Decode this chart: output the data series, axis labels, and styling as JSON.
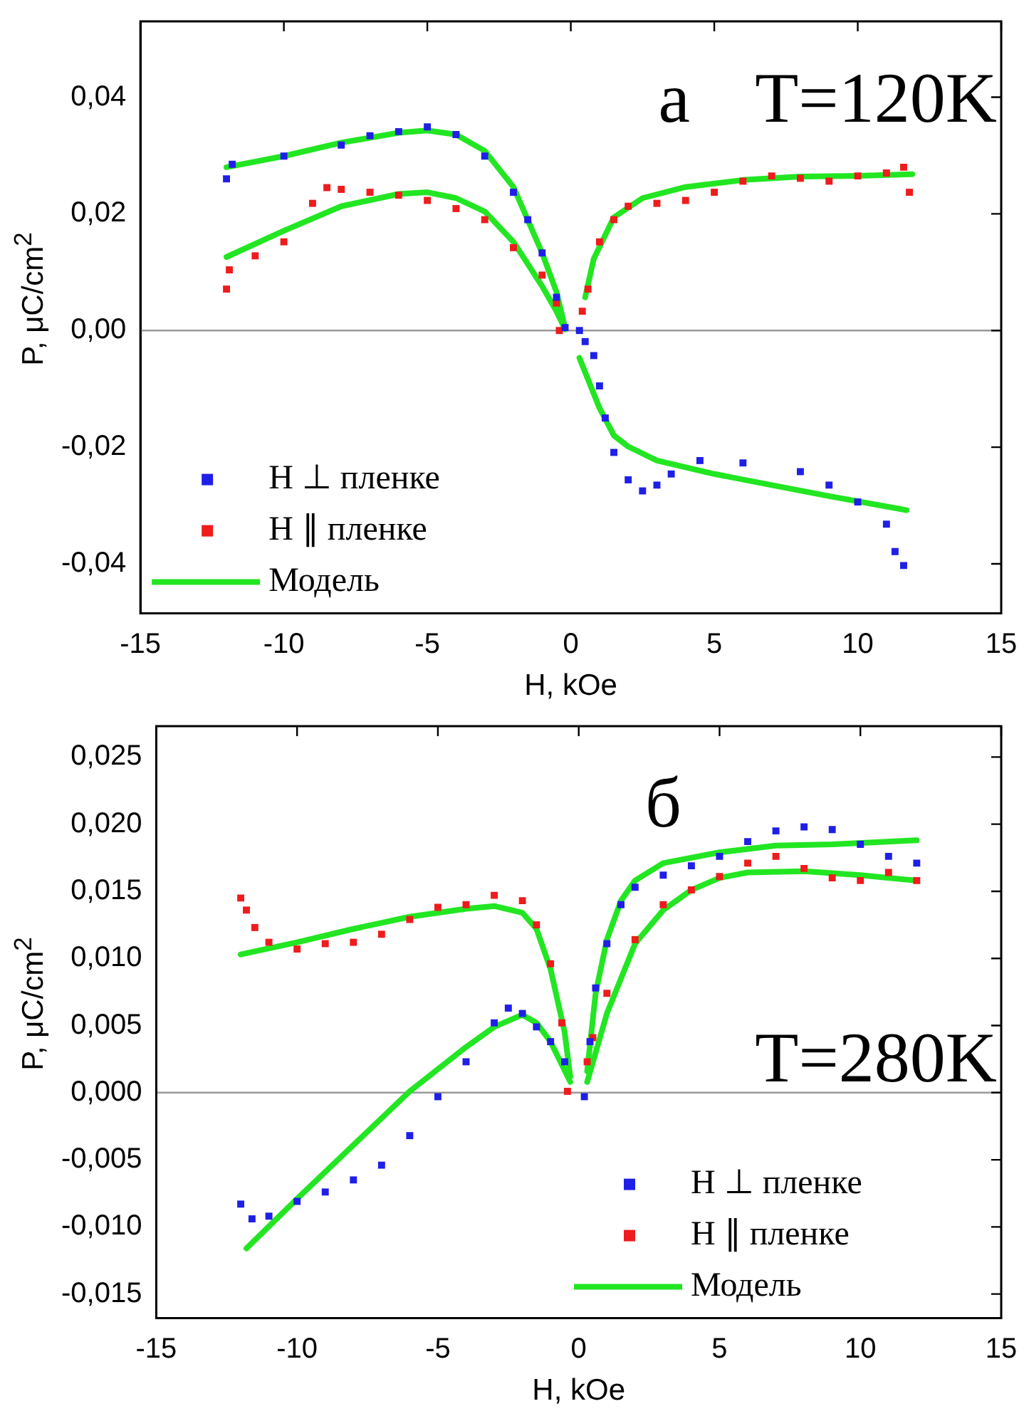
{
  "chart_data": [
    {
      "type": "scatter",
      "xlabel": "H, kOe",
      "ylabel": "P, μC/cm$^{2}$",
      "annotations": [
        "а",
        "T=120K"
      ],
      "xlim": [
        -15,
        15
      ],
      "xticks": [
        -15,
        -10,
        -5,
        0,
        5,
        10,
        15
      ],
      "ylim": [
        -0.0485,
        0.053
      ],
      "yticks": [
        {
          "value": -0.04,
          "label": "-0,04"
        },
        {
          "value": -0.02,
          "label": "-0,02"
        },
        {
          "value": 0,
          "label": "0,00"
        },
        {
          "value": 0.02,
          "label": "0,02"
        },
        {
          "value": 0.04,
          "label": "0,04"
        }
      ],
      "grid": false,
      "legend": "bottom left",
      "marker": "square",
      "ref_lines": [
        {
          "axis": "y",
          "value": 0,
          "color": "#999999"
        }
      ],
      "series": [
        {
          "name": "H ⊥ пленке",
          "color": "#1f1fe8",
          "x": [
            -12,
            -11.8,
            -10,
            -8,
            -7,
            -6,
            -5,
            -4,
            -3,
            -2,
            -1.5,
            -1,
            -0.5,
            -0.2,
            0.3,
            0.5,
            0.8,
            1,
            1.2,
            1.5,
            2,
            2.5,
            3,
            3.5,
            4.5,
            6,
            8,
            9,
            10,
            11,
            11.3,
            11.6
          ],
          "values": [
            0.026,
            0.0285,
            0.0299,
            0.0318,
            0.0334,
            0.0341,
            0.0349,
            0.0336,
            0.0299,
            0.0237,
            0.019,
            0.0133,
            0.0057,
            0.0005,
            0,
            -0.0019,
            -0.0043,
            -0.0095,
            -0.015,
            -0.0209,
            -0.0256,
            -0.0275,
            -0.0265,
            -0.0246,
            -0.0223,
            -0.0227,
            -0.0242,
            -0.0265,
            -0.0294,
            -0.0332,
            -0.0379,
            -0.0403
          ]
        },
        {
          "name": "H ∥ пленке",
          "color": "#ee1c1c",
          "x": [
            -12,
            -11.9,
            -11,
            -10,
            -9,
            -8.5,
            -8,
            -7,
            -6,
            -5,
            -4,
            -3,
            -2,
            -1,
            -0.5,
            -0.4,
            0.4,
            0.6,
            1,
            1.5,
            2,
            3,
            4,
            5,
            6,
            7,
            8,
            9,
            10,
            11,
            11.6,
            11.8
          ],
          "values": [
            0.0071,
            0.0104,
            0.0128,
            0.0152,
            0.0218,
            0.0245,
            0.0242,
            0.0237,
            0.0232,
            0.0223,
            0.0209,
            0.019,
            0.0142,
            0.0095,
            0.0047,
            0,
            0.0033,
            0.0071,
            0.0152,
            0.019,
            0.0213,
            0.0218,
            0.0223,
            0.0237,
            0.0256,
            0.0265,
            0.0261,
            0.0256,
            0.0265,
            0.027,
            0.028,
            0.0237
          ]
        },
        {
          "name": "Модель",
          "type": "line",
          "color": "#22e622",
          "marker": "none",
          "x": [
            -12,
            -10,
            -8,
            -6,
            -5,
            -4,
            -3,
            -2,
            -1,
            -0.5,
            -0.2
          ],
          "values": [
            0.028,
            0.0299,
            0.0322,
            0.0339,
            0.0343,
            0.0336,
            0.0308,
            0.0246,
            0.0133,
            0.0066,
            0.0005
          ]
        },
        {
          "type": "line",
          "color": "#22e622",
          "marker": "none",
          "x": [
            -12,
            -10,
            -8,
            -6,
            -5,
            -4,
            -3,
            -2,
            -1,
            -0.5,
            -0.2
          ],
          "values": [
            0.0126,
            0.0171,
            0.0213,
            0.0234,
            0.0237,
            0.0227,
            0.0204,
            0.0152,
            0.0076,
            0.0033,
            0.0002
          ]
        },
        {
          "type": "line",
          "color": "#22e622",
          "marker": "none",
          "x": [
            0.5,
            0.8,
            1.5,
            2.5,
            4,
            6,
            8,
            10,
            11.9
          ],
          "values": [
            0.0057,
            0.0123,
            0.0194,
            0.0227,
            0.0246,
            0.0258,
            0.0264,
            0.0265,
            0.0268
          ]
        },
        {
          "type": "line",
          "color": "#22e622",
          "marker": "none",
          "x": [
            0.3,
            1,
            1.5,
            2,
            3,
            5,
            7,
            9,
            11.7
          ],
          "values": [
            -0.0047,
            -0.0133,
            -0.018,
            -0.0199,
            -0.0223,
            -0.0246,
            -0.0265,
            -0.0284,
            -0.0308
          ]
        }
      ]
    },
    {
      "type": "scatter",
      "xlabel": "H, kOe",
      "ylabel": "P, μC/cm$^{2}$",
      "annotations": [
        "б",
        "T=280K"
      ],
      "xlim": [
        -15,
        15
      ],
      "xticks": [
        -15,
        -10,
        -5,
        0,
        5,
        10,
        15
      ],
      "ylim": [
        -0.0168,
        0.0273
      ],
      "yticks": [
        {
          "value": -0.015,
          "label": "-0,015"
        },
        {
          "value": -0.01,
          "label": "-0,010"
        },
        {
          "value": -0.005,
          "label": "-0,005"
        },
        {
          "value": 0,
          "label": "0,000"
        },
        {
          "value": 0.005,
          "label": "0,005"
        },
        {
          "value": 0.01,
          "label": "0,010"
        },
        {
          "value": 0.015,
          "label": "0,015"
        },
        {
          "value": 0.02,
          "label": "0,020"
        },
        {
          "value": 0.025,
          "label": "0,025"
        }
      ],
      "grid": false,
      "legend": "bottom right",
      "marker": "square",
      "ref_lines": [
        {
          "axis": "y",
          "value": 0,
          "color": "#999999"
        }
      ],
      "series": [
        {
          "name": "H ⊥ пленке",
          "color": "#1f1fe8",
          "x": [
            -12,
            -11.6,
            -11,
            -10,
            -9,
            -8,
            -7,
            -6,
            -5,
            -4,
            -3,
            -2.5,
            -2,
            -1.5,
            -1,
            -0.5,
            0.2,
            0.4,
            0.6,
            1,
            1.5,
            2,
            3,
            4,
            5,
            6,
            7,
            8,
            9,
            10,
            11,
            12
          ],
          "values": [
            -0.0083,
            -0.0094,
            -0.0092,
            -0.0081,
            -0.0074,
            -0.0065,
            -0.0054,
            -0.0032,
            -0.0003,
            0.0023,
            0.0052,
            0.0063,
            0.0059,
            0.0049,
            0.0038,
            0.0023,
            -0.0003,
            0.0038,
            0.0078,
            0.0111,
            0.014,
            0.0153,
            0.0162,
            0.0169,
            0.0176,
            0.0187,
            0.0195,
            0.0198,
            0.0196,
            0.0185,
            0.0176,
            0.0171
          ]
        },
        {
          "name": "H ∥ пленке",
          "color": "#ee1c1c",
          "x": [
            -12,
            -11.8,
            -11.5,
            -11,
            -10,
            -9,
            -8,
            -7,
            -6,
            -5,
            -4,
            -3,
            -2,
            -1.5,
            -1,
            -0.6,
            -0.4,
            0.3,
            0.5,
            1,
            2,
            3,
            4,
            5,
            6,
            7,
            8,
            9,
            10,
            11,
            12
          ],
          "values": [
            0.0145,
            0.0136,
            0.0123,
            0.0112,
            0.0107,
            0.0111,
            0.0112,
            0.0118,
            0.0129,
            0.0138,
            0.014,
            0.0147,
            0.0143,
            0.0125,
            0.0096,
            0.0052,
            0.0001,
            0.0023,
            0.0041,
            0.0074,
            0.0114,
            0.014,
            0.0151,
            0.0161,
            0.0171,
            0.0176,
            0.0167,
            0.016,
            0.0158,
            0.0164,
            0.0158
          ]
        },
        {
          "name": "Модель",
          "type": "line",
          "color": "#22e622",
          "marker": "none",
          "x": [
            -12,
            -10,
            -8,
            -6,
            -4,
            -3,
            -2,
            -1.5,
            -1,
            -0.5,
            -0.3
          ],
          "values": [
            0.0103,
            0.0112,
            0.0122,
            0.0131,
            0.0137,
            0.0139,
            0.0134,
            0.0122,
            0.0092,
            0.0045,
            0.0012
          ]
        },
        {
          "type": "line",
          "color": "#22e622",
          "marker": "none",
          "x": [
            -11.8,
            -10,
            -8,
            -6,
            -4,
            -3,
            -2,
            -1.5,
            -1,
            -0.3
          ],
          "values": [
            -0.0116,
            -0.0079,
            -0.0039,
            0.0001,
            0.0034,
            0.0049,
            0.0058,
            0.0052,
            0.0038,
            0.0008
          ]
        },
        {
          "type": "line",
          "color": "#22e622",
          "marker": "none",
          "x": [
            0.3,
            0.6,
            1,
            1.5,
            2,
            3,
            5,
            7,
            9,
            12
          ],
          "values": [
            0.0016,
            0.0074,
            0.0114,
            0.0143,
            0.0158,
            0.0171,
            0.0179,
            0.0184,
            0.0185,
            0.0188
          ]
        },
        {
          "type": "line",
          "color": "#22e622",
          "marker": "none",
          "x": [
            0.3,
            1,
            2,
            3,
            4,
            5,
            6,
            8,
            10,
            12
          ],
          "values": [
            0.0008,
            0.0059,
            0.0111,
            0.0136,
            0.0151,
            0.016,
            0.0164,
            0.0165,
            0.0162,
            0.0158
          ]
        }
      ]
    }
  ]
}
